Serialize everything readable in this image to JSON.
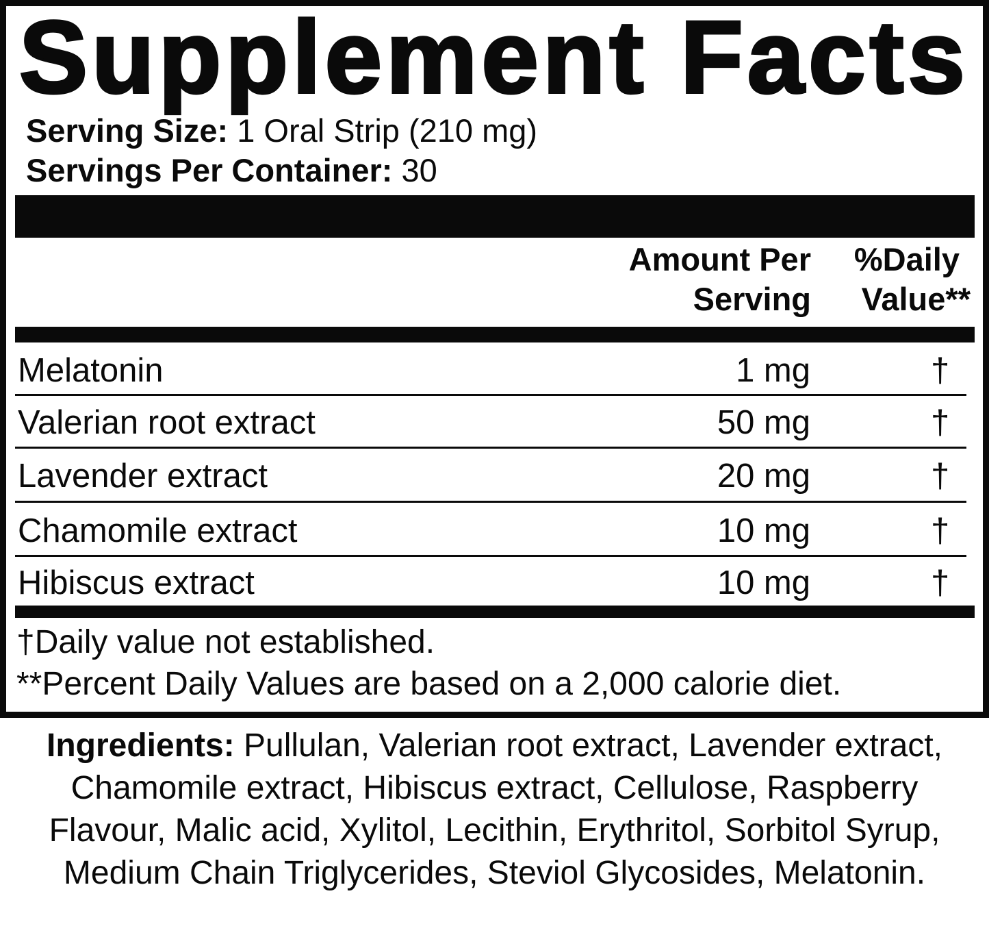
{
  "title": "Supplement Facts",
  "serving_size": {
    "label": "Serving Size:",
    "value": "1 Oral Strip (210 mg)"
  },
  "servings_per_container": {
    "label": "Servings Per Container:",
    "value": "30"
  },
  "header": {
    "amount_line1": "Amount Per",
    "amount_line2": "Serving",
    "dv_line1": "%Daily",
    "dv_line2": "Value**"
  },
  "rows": [
    {
      "name": "Melatonin",
      "amount": "1 mg",
      "dv": "†"
    },
    {
      "name": "Valerian root extract",
      "amount": "50 mg",
      "dv": "†"
    },
    {
      "name": "Lavender extract",
      "amount": "20 mg",
      "dv": "†"
    },
    {
      "name": "Chamomile extract",
      "amount": "10 mg",
      "dv": "†"
    },
    {
      "name": "Hibiscus extract",
      "amount": "10 mg",
      "dv": "†"
    }
  ],
  "footnotes": [
    "†Daily value not established.",
    "**Percent Daily Values are based on a 2,000 calorie diet."
  ],
  "ingredients": {
    "label": "Ingredients:",
    "text": " Pullulan, Valerian root extract, Lavender extract, Chamomile extract, Hibiscus extract, Cellulose, Raspberry Flavour, Malic acid, Xylitol, Lecithin, Erythritol, Sorbitol Syrup, Medium Chain Triglycerides, Steviol Glycosides, Melatonin."
  }
}
